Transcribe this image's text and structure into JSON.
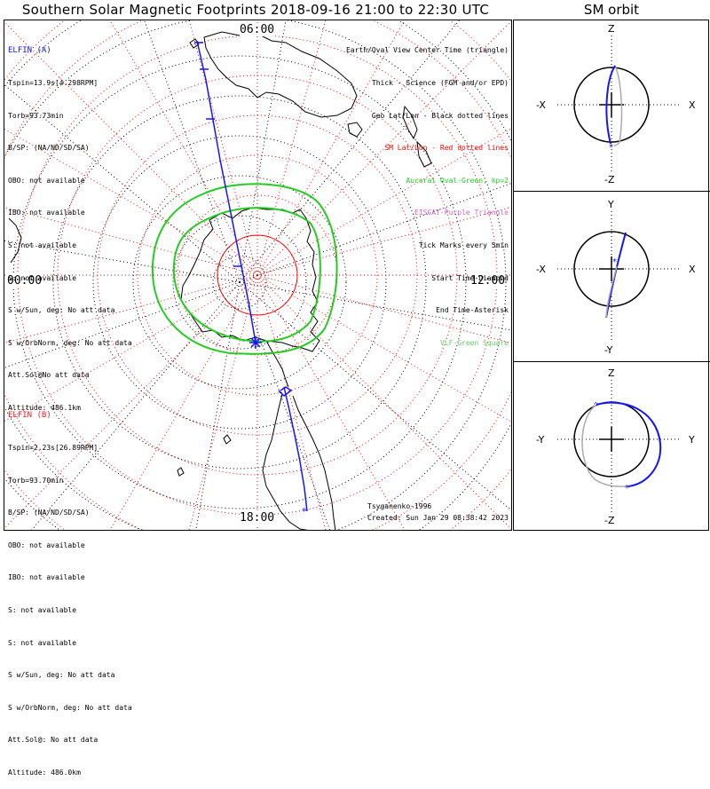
{
  "title": "Southern Solar Magnetic Footprints 2018-09-16 21:00 to 22:30 UTC",
  "orbit_title": "SM orbit",
  "local_time_labels": {
    "top": "06:00",
    "left": "00:00",
    "right": "12:00",
    "bottom": "18:00"
  },
  "elfin_a": {
    "name": "ELFIN (A)",
    "color": "#1414ff",
    "lines": [
      "Tspin=13.9s[4.298RPM]",
      "Torb=93.73min",
      "B/SP: (NA/ND/SD/SA)",
      "OBO: not available",
      "IBO: not available",
      "S: not available",
      "S: not available",
      "S w/Sun, deg: No att data",
      "S w/OrbNorm, deg: No att data",
      "Att.Sol@No att data",
      "Altitude: 486.1km"
    ]
  },
  "elfin_b": {
    "name": "ELFIN (B)",
    "color": "#ff1a1a",
    "lines": [
      "Tspin=2.23s[26.89RPM]",
      "Torb=93.70min",
      "B/SP: (NA/ND/SD/SA)",
      "OBO: not available",
      "IBO: not available",
      "S: not available",
      "S: not available",
      "S w/Sun, deg: No att data",
      "S w/OrbNorm, deg: No att data",
      "Att.Sol@: No att data",
      "Altitude: 486.0km"
    ]
  },
  "legend": [
    {
      "text": "Earth/Oval View Center Time (triangle)",
      "color": "#000000"
    },
    {
      "text": "Thick - Science (FGM and/or EPD)",
      "color": "#000000"
    },
    {
      "text": "Geo Lat/Lon - Black dotted lines",
      "color": "#000000"
    },
    {
      "text": "SM Lat/Lon - Red dotted lines",
      "color": "#ff0000"
    },
    {
      "text": "Auroral Oval-Green, kp=2",
      "color": "#22cc22"
    },
    {
      "text": "EISCAT-Purple Triangle",
      "color": "#cc66cc"
    },
    {
      "text": "Tick Marks every 5min",
      "color": "#000000"
    },
    {
      "text": "Start Time-Diamond",
      "color": "#000000"
    },
    {
      "text": "End Time-Asterisk",
      "color": "#000000"
    },
    {
      "text": "VLF-Green Square",
      "color": "#66cc66"
    }
  ],
  "credit_model": "Tsyganenko-1996",
  "credit_created": "Created: Sun Jan 29 08:38:42 2023",
  "orbit_panels": [
    {
      "top": "Z",
      "bottom": "-Z",
      "left": "-X",
      "right": "X"
    },
    {
      "top": "Y",
      "bottom": "-Y",
      "left": "-X",
      "right": "X"
    },
    {
      "top": "Z",
      "bottom": "-Z",
      "left": "-Y",
      "right": "Y"
    }
  ],
  "colors": {
    "trace": "#1414ff",
    "oval": "#22cc22",
    "sm_grid": "#ff0000",
    "geo_grid": "#000000"
  }
}
